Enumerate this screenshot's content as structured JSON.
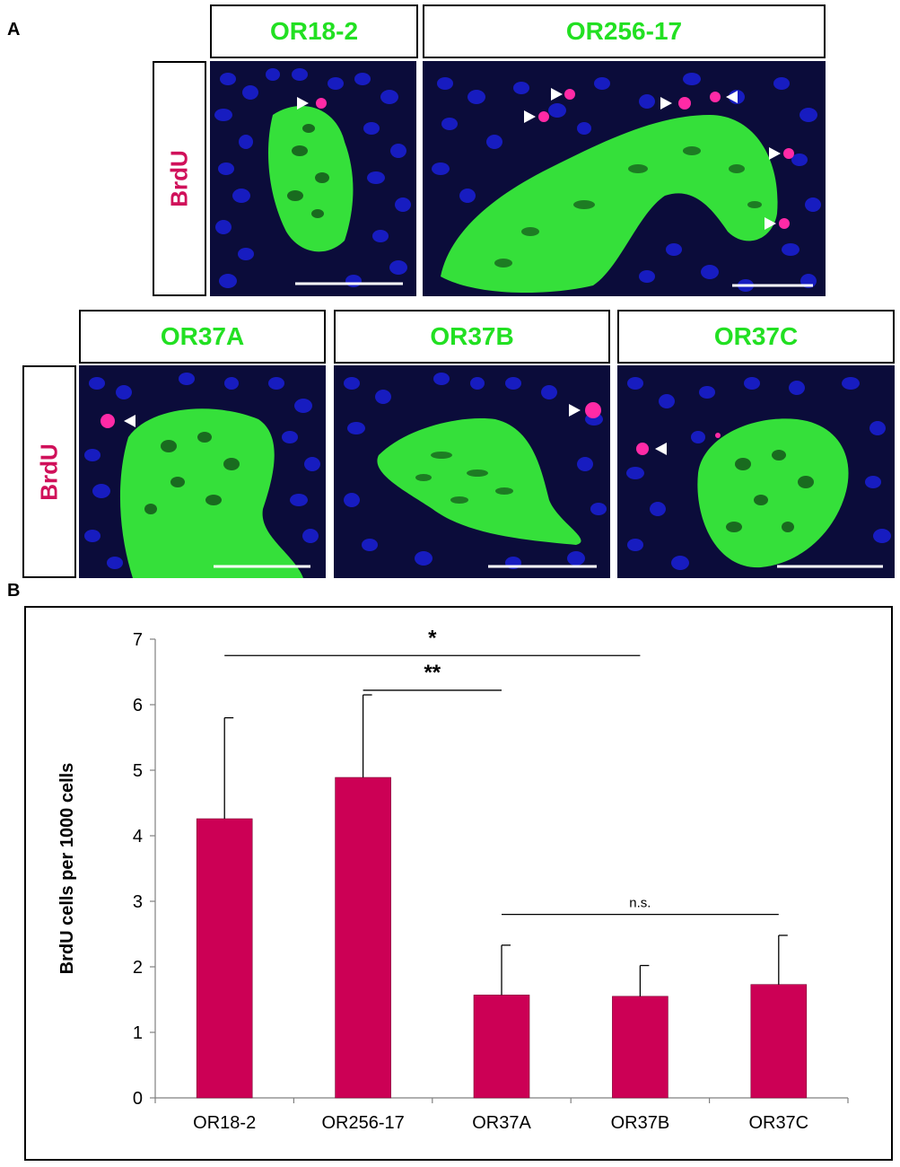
{
  "panel_a_letter": "A",
  "panel_b_letter": "B",
  "colors": {
    "green_label": "#22e022",
    "brdu_label": "#d0105a",
    "bar_fill": "#cc0055",
    "nuclei": "#1a1fd8",
    "fiber": "#35e03a",
    "brdu_cell": "#ff2aa6",
    "background": "#0b0c3a"
  },
  "micrographs": {
    "row_label": "BrdU",
    "panels": [
      {
        "label": "OR18-2",
        "arrowheads": 1
      },
      {
        "label": "OR256-17",
        "arrowheads": 6
      },
      {
        "label": "OR37A",
        "arrowheads": 1
      },
      {
        "label": "OR37B",
        "arrowheads": 1
      },
      {
        "label": "OR37C",
        "arrowheads": 1
      }
    ]
  },
  "chart_data": {
    "type": "bar",
    "categories": [
      "OR18-2",
      "OR256-17",
      "OR37A",
      "OR37B",
      "OR37C"
    ],
    "values": [
      4.26,
      4.89,
      1.57,
      1.55,
      1.73
    ],
    "error_upper": [
      5.8,
      6.15,
      2.33,
      2.02,
      2.48
    ],
    "ylabel": "BrdU cells per 1000 cells",
    "xlabel": "",
    "ylim": [
      0,
      7
    ],
    "yticks": [
      "0",
      "1",
      "2",
      "3",
      "4",
      "5",
      "6",
      "7"
    ],
    "grid": false,
    "significance": [
      {
        "from": "OR18-2",
        "to": "OR37B",
        "label": "*",
        "y": 6.75
      },
      {
        "from": "OR256-17",
        "to": "OR37A",
        "label": "**",
        "y": 6.22
      },
      {
        "from": "OR37A",
        "to": "OR37C",
        "label": "n.s.",
        "y": 2.8
      }
    ]
  }
}
